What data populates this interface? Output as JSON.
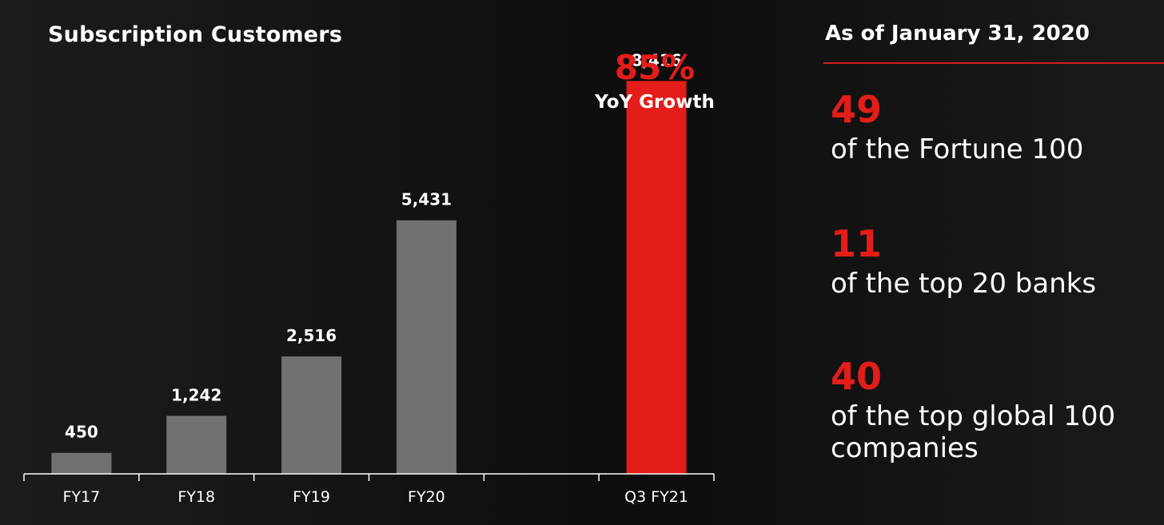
{
  "chart_data": {
    "type": "bar",
    "title": "Subscription Customers",
    "categories": [
      "FY17",
      "FY18",
      "FY19",
      "FY20",
      "",
      "Q3 FY21"
    ],
    "values": [
      450,
      1242,
      2516,
      5431,
      null,
      8416
    ],
    "value_labels": [
      "450",
      "1,242",
      "2,516",
      "5,431",
      "",
      "8,416"
    ],
    "highlight_index": 5,
    "colors": {
      "default": "#717171",
      "highlight": "#e31d1a"
    },
    "ylim": [
      0,
      9500
    ],
    "grid": false,
    "annotation": {
      "value": "85%",
      "label": "YoY Growth"
    }
  },
  "stats": {
    "header": "As of January 31, 2020",
    "items": [
      {
        "number": "49",
        "description": "of the Fortune 100"
      },
      {
        "number": "11",
        "description": "of the top 20 banks"
      },
      {
        "number": "40",
        "description": "of the top global 100 companies"
      }
    ]
  },
  "colors": {
    "accent": "#e31d1a",
    "background": "#151515",
    "text": "#ffffff"
  }
}
